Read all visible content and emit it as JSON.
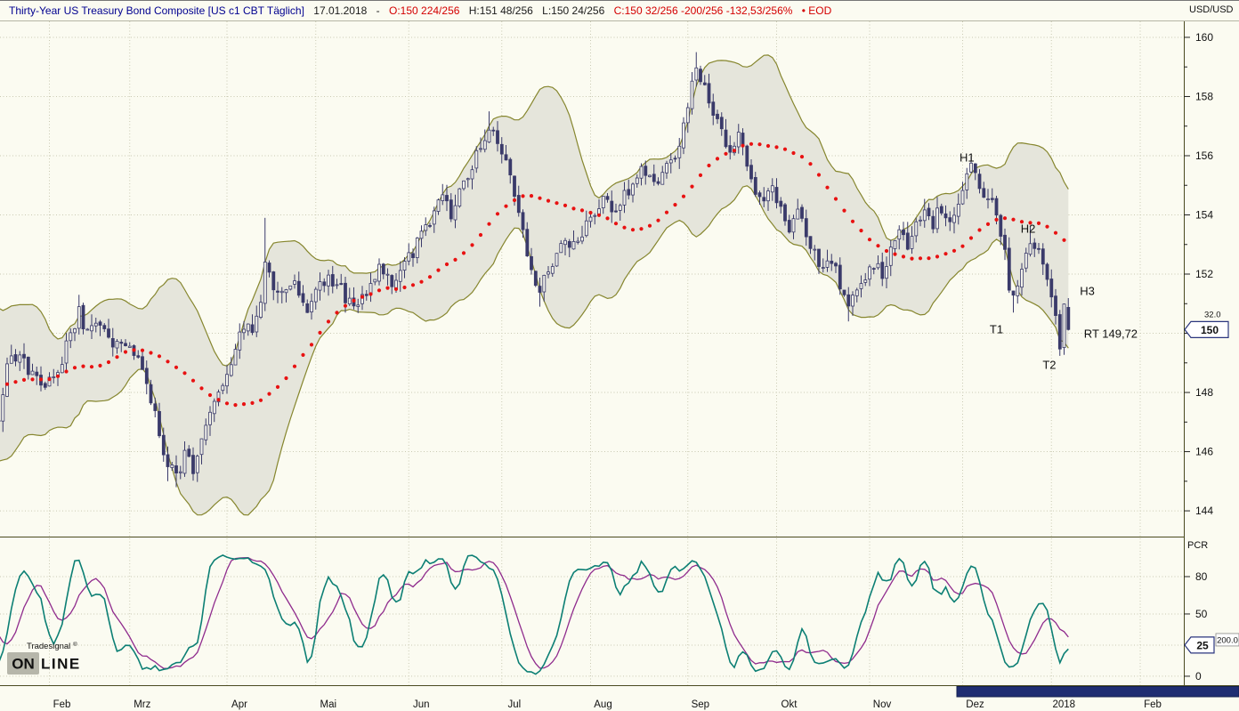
{
  "header": {
    "title": "Thirty-Year US Treasury Bond Composite [US c1 CBT Täglich]",
    "date": "17.01.2018",
    "sep": "-",
    "open": "O:150 224/256",
    "high": "H:151 48/256",
    "low": "L:150 24/256",
    "close": "C:150 32/256 -200/256 -132,53/256%",
    "eod": "• EOD"
  },
  "right_axis": {
    "currency_label": "USD/USD",
    "price_ticks": [
      160,
      158,
      156,
      154,
      152,
      150,
      148,
      146,
      144
    ],
    "price_marker": {
      "value": "150",
      "fraction": "32.0"
    },
    "osc_label": "PCR",
    "osc_ticks": [
      80,
      50,
      0
    ],
    "osc_marker": {
      "value": "25",
      "extra": "200.0"
    }
  },
  "x_axis": {
    "labels": [
      "Feb",
      "Mrz",
      "Apr",
      "Mai",
      "Jun",
      "Jul",
      "Aug",
      "Sep",
      "Okt",
      "Nov",
      "Dez",
      "2018",
      "Feb"
    ]
  },
  "watermark": {
    "brand": "Tradesignal",
    "reg": "®",
    "word_part1": "ON",
    "word_part2": "LINE"
  },
  "chart_data": {
    "type": "candlestick",
    "title": "Thirty-Year US Treasury Bond Composite [US c1 CBT Täglich]",
    "instrument": "Thirty-Year US Treasury Bond Composite",
    "contract": "US c1 CBT",
    "period": "Täglich",
    "last_quote": {
      "date": "17.01.2018",
      "open": 150.875,
      "high": 151.1875,
      "low": 150.09375,
      "close": 150.125,
      "change_256": -200,
      "eod": true
    },
    "ylim": [
      143.13,
      160.54
    ],
    "y_ticks": [
      144,
      146,
      148,
      150,
      152,
      154,
      156,
      158,
      160
    ],
    "days_total": 252,
    "month_start_days": [
      10,
      29,
      52,
      73,
      95,
      117,
      138,
      161,
      182,
      204,
      226,
      247,
      268
    ],
    "price_close_keypoints": [
      [
        0,
        148.9
      ],
      [
        3,
        149.3
      ],
      [
        6,
        148.6
      ],
      [
        9,
        148.2
      ],
      [
        12,
        148.8
      ],
      [
        15,
        149.9
      ],
      [
        17,
        150.7
      ],
      [
        19,
        150.0
      ],
      [
        22,
        150.3
      ],
      [
        25,
        149.6
      ],
      [
        28,
        149.8
      ],
      [
        30,
        149.3
      ],
      [
        32,
        148.6
      ],
      [
        34,
        147.8
      ],
      [
        36,
        146.5
      ],
      [
        38,
        145.6
      ],
      [
        40,
        145.2
      ],
      [
        42,
        145.9
      ],
      [
        44,
        145.4
      ],
      [
        46,
        146.4
      ],
      [
        48,
        147.2
      ],
      [
        50,
        147.9
      ],
      [
        52,
        148.7
      ],
      [
        54,
        149.5
      ],
      [
        56,
        150.2
      ],
      [
        58,
        150.0
      ],
      [
        60,
        151.0
      ],
      [
        61,
        152.2
      ],
      [
        63,
        151.7
      ],
      [
        65,
        151.2
      ],
      [
        68,
        151.6
      ],
      [
        71,
        150.9
      ],
      [
        73,
        151.3
      ],
      [
        76,
        151.9
      ],
      [
        79,
        151.4
      ],
      [
        82,
        150.8
      ],
      [
        85,
        151.5
      ],
      [
        88,
        152.1
      ],
      [
        91,
        151.8
      ],
      [
        94,
        152.4
      ],
      [
        97,
        153.0
      ],
      [
        100,
        153.8
      ],
      [
        103,
        154.6
      ],
      [
        105,
        154.1
      ],
      [
        108,
        154.9
      ],
      [
        110,
        155.7
      ],
      [
        112,
        156.4
      ],
      [
        114,
        157.0
      ],
      [
        116,
        156.6
      ],
      [
        118,
        155.8
      ],
      [
        120,
        154.6
      ],
      [
        122,
        153.3
      ],
      [
        124,
        151.9
      ],
      [
        126,
        151.6
      ],
      [
        128,
        151.9
      ],
      [
        130,
        152.6
      ],
      [
        132,
        153.3
      ],
      [
        134,
        152.9
      ],
      [
        136,
        153.4
      ],
      [
        138,
        153.8
      ],
      [
        141,
        154.4
      ],
      [
        144,
        154.1
      ],
      [
        147,
        154.9
      ],
      [
        150,
        155.4
      ],
      [
        153,
        155.0
      ],
      [
        156,
        155.7
      ],
      [
        159,
        156.3
      ],
      [
        161,
        157.6
      ],
      [
        163,
        159.1
      ],
      [
        165,
        158.3
      ],
      [
        167,
        157.4
      ],
      [
        169,
        156.8
      ],
      [
        171,
        156.2
      ],
      [
        173,
        156.9
      ],
      [
        175,
        155.8
      ],
      [
        177,
        154.9
      ],
      [
        179,
        154.4
      ],
      [
        181,
        154.8
      ],
      [
        183,
        154.2
      ],
      [
        185,
        153.6
      ],
      [
        187,
        154.0
      ],
      [
        189,
        153.3
      ],
      [
        191,
        152.6
      ],
      [
        193,
        152.1
      ],
      [
        195,
        152.5
      ],
      [
        197,
        151.7
      ],
      [
        199,
        151.1
      ],
      [
        201,
        151.5
      ],
      [
        203,
        151.9
      ],
      [
        205,
        152.4
      ],
      [
        207,
        152.0
      ],
      [
        209,
        152.8
      ],
      [
        211,
        153.4
      ],
      [
        213,
        153.0
      ],
      [
        215,
        153.6
      ],
      [
        217,
        154.1
      ],
      [
        219,
        153.7
      ],
      [
        221,
        154.3
      ],
      [
        223,
        153.9
      ],
      [
        225,
        154.5
      ],
      [
        226,
        154.8
      ],
      [
        228,
        155.5
      ],
      [
        230,
        155.0
      ],
      [
        232,
        154.6
      ],
      [
        234,
        154.2
      ],
      [
        236,
        152.8
      ],
      [
        237,
        151.7
      ],
      [
        238,
        151.1
      ],
      [
        240,
        152.1
      ],
      [
        242,
        153.2
      ],
      [
        244,
        152.7
      ],
      [
        246,
        152.0
      ],
      [
        247,
        151.3
      ],
      [
        248,
        150.4
      ],
      [
        249,
        149.7
      ],
      [
        250,
        150.9
      ],
      [
        251,
        150.125
      ]
    ],
    "high_overrides": [
      [
        17,
        151.3
      ],
      [
        61,
        153.9
      ],
      [
        114,
        157.5
      ],
      [
        163,
        159.5
      ],
      [
        228,
        155.9
      ],
      [
        242,
        153.6
      ]
    ],
    "low_overrides": [
      [
        38,
        145.0
      ],
      [
        40,
        144.8
      ],
      [
        126,
        150.9
      ],
      [
        199,
        150.4
      ],
      [
        238,
        150.7
      ],
      [
        249,
        149.3
      ]
    ],
    "indicators": {
      "bollinger": {
        "period": 20,
        "stddev": 2
      },
      "sma_dots": {
        "period": 30
      },
      "oscillator": {
        "label": "PCR",
        "levels": [
          80,
          50,
          25,
          0
        ],
        "ylim": [
          -7.2,
          110
        ],
        "last_value": 25,
        "param": "200.0"
      }
    },
    "annotations": [
      {
        "label": "H1",
        "day": 227,
        "price": 155.8,
        "color": "#0000cd",
        "anchor": "middle"
      },
      {
        "label": "H2",
        "day": 241.5,
        "price": 153.4,
        "color": "#0000cd",
        "anchor": "middle"
      },
      {
        "label": "H3",
        "day": 255.5,
        "price": 151.3,
        "color": "#0000cd",
        "anchor": "middle"
      },
      {
        "label": "T1",
        "day": 234,
        "price": 150.0,
        "color": "#cc0000",
        "anchor": "middle"
      },
      {
        "label": "T2",
        "day": 246.5,
        "price": 148.8,
        "color": "#cc0000",
        "anchor": "middle"
      },
      {
        "label": "RT 149,72",
        "day": 254.7,
        "price": 149.85,
        "color": "#cc0000",
        "anchor": "start"
      }
    ],
    "colors": {
      "background": "#fbfbf1",
      "grid": "#c9c9b2",
      "band_fill": "#e5e5db",
      "band_line": "#86862e",
      "candle": "#3a3a6a",
      "candle_up_fill": "#f2f2ea",
      "ma_dots": "#e81212",
      "axis_line": "#4a4a20",
      "osc_fast": "#0c7f74",
      "osc_slow": "#8f2b8d",
      "marker_border": "#2a357e",
      "scrollbar": "#1f2d72",
      "watermark": "#b6b6aa",
      "annotation_blue": "#0000cd",
      "annotation_red": "#cc0000",
      "title_blue": "#00008f",
      "quote_red": "#d40000"
    }
  }
}
